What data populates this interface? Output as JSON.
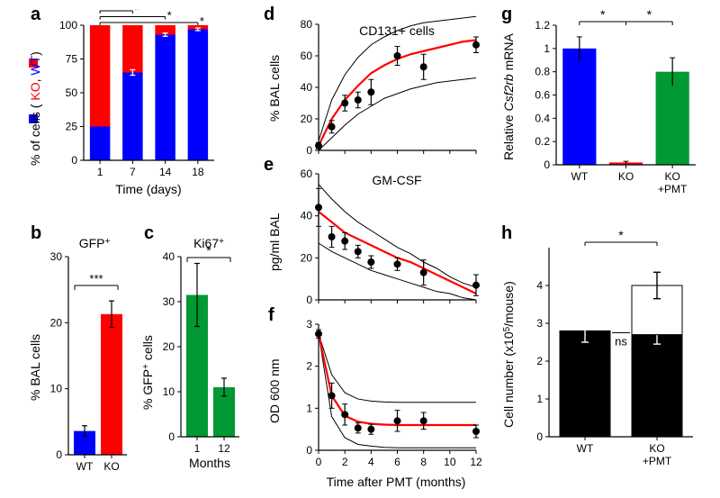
{
  "global": {
    "font_family": "Arial, Helvetica, sans-serif",
    "panel_label_fontsize": 20,
    "axis_label_fontsize": 14,
    "tick_fontsize": 12,
    "stroke_color": "#000000",
    "background_color": "#ffffff"
  },
  "panel_a": {
    "label": "a",
    "type": "stacked-bar",
    "x_categories": [
      "1",
      "7",
      "14",
      "18"
    ],
    "series": [
      {
        "name": "KO",
        "color": "#ff0000",
        "values": [
          75,
          35,
          7,
          3
        ],
        "errors": [
          0,
          2,
          1.2,
          1
        ]
      },
      {
        "name": "WT",
        "color": "#0000ff",
        "values": [
          25,
          65,
          93,
          97
        ],
        "errors": [
          0,
          2,
          1.2,
          1
        ]
      }
    ],
    "ylabel_top": "KO, ",
    "ylabel_bottom": "WT)",
    "ylabel_prefix": "% of cells ( ",
    "ylim": [
      0,
      100
    ],
    "yticks": [
      0,
      25,
      50,
      75,
      100
    ],
    "xlabel": "Time (days)",
    "bar_width": 0.62,
    "sig_marker": "*",
    "sig_pairs": [
      [
        0,
        1
      ],
      [
        0,
        2
      ],
      [
        0,
        3
      ]
    ]
  },
  "panel_b": {
    "label": "b",
    "type": "bar",
    "title": "GFP",
    "title_sup": "+",
    "x_categories": [
      "WT",
      "KO"
    ],
    "values": [
      3.6,
      21.3
    ],
    "errors": [
      0.8,
      2.0
    ],
    "colors": [
      "#0000ff",
      "#ff0000"
    ],
    "ylabel": "% BAL cells",
    "ylim": [
      0,
      30
    ],
    "yticks": [
      0,
      10,
      20,
      30
    ],
    "sig_label": "***",
    "bar_width": 0.8
  },
  "panel_c": {
    "label": "c",
    "type": "bar",
    "title": "Ki67",
    "title_sup": "+",
    "x_categories": [
      "1",
      "12"
    ],
    "values": [
      31.5,
      11.0
    ],
    "errors": [
      7.0,
      2.0
    ],
    "color": "#009933",
    "ylabel": "% GFP",
    "ylabel_sup": "+",
    "ylabel_suffix": " cells",
    "ylim": [
      0,
      40
    ],
    "yticks": [
      0,
      10,
      20,
      30,
      40
    ],
    "xlabel": "Months",
    "sig_label": "*",
    "bar_width": 0.8
  },
  "panel_d": {
    "label": "d",
    "type": "scatter-fit",
    "title": "CD131+ cells",
    "ylabel": "% BAL cells",
    "ylim": [
      0,
      80
    ],
    "yticks": [
      0,
      20,
      40,
      60,
      80
    ],
    "xlim": [
      0,
      12
    ],
    "xticks": [
      0,
      2,
      4,
      6,
      8,
      10,
      12
    ],
    "points": [
      {
        "x": 0,
        "y": 3,
        "ey": 2
      },
      {
        "x": 1,
        "y": 15,
        "ey": 4
      },
      {
        "x": 2,
        "y": 30,
        "ey": 5
      },
      {
        "x": 3,
        "y": 32,
        "ey": 5
      },
      {
        "x": 4,
        "y": 37,
        "ey": 8
      },
      {
        "x": 6,
        "y": 60,
        "ey": 6
      },
      {
        "x": 8,
        "y": 53,
        "ey": 8
      },
      {
        "x": 12,
        "y": 67,
        "ey": 5
      }
    ],
    "fit_color": "#ff0000",
    "band_color": "#000000",
    "marker_color": "#000000",
    "marker_size": 4,
    "fit_line_width": 2.2,
    "fit_y": [
      3,
      20,
      32,
      41,
      49,
      54,
      58,
      61,
      63,
      65,
      67,
      69,
      70
    ],
    "band_upper": [
      6,
      32,
      48,
      59,
      67,
      72,
      76,
      79,
      81,
      82,
      83,
      84,
      85
    ],
    "band_lower": [
      0,
      8,
      16,
      23,
      28,
      33,
      36,
      39,
      41,
      43,
      44,
      45,
      46
    ]
  },
  "panel_e": {
    "label": "e",
    "type": "scatter-fit",
    "title": "GM-CSF",
    "ylabel": "pg/ml BAL",
    "ylim": [
      0,
      60
    ],
    "yticks": [
      0,
      20,
      40,
      60
    ],
    "xlim": [
      0,
      12
    ],
    "xticks": [
      0,
      2,
      4,
      6,
      8,
      10,
      12
    ],
    "points": [
      {
        "x": 0,
        "y": 44,
        "ey": 9
      },
      {
        "x": 1,
        "y": 30,
        "ey": 5
      },
      {
        "x": 2,
        "y": 28,
        "ey": 4
      },
      {
        "x": 3,
        "y": 23,
        "ey": 3
      },
      {
        "x": 4,
        "y": 18,
        "ey": 3
      },
      {
        "x": 6,
        "y": 17,
        "ey": 3
      },
      {
        "x": 8,
        "y": 13,
        "ey": 6
      },
      {
        "x": 12,
        "y": 7,
        "ey": 5
      }
    ],
    "fit_color": "#ff0000",
    "band_color": "#000000",
    "marker_color": "#000000",
    "marker_size": 4,
    "fit_line_width": 2.2,
    "fit_y": [
      42,
      37,
      32,
      29,
      26,
      23,
      20,
      18,
      15,
      12,
      9,
      6,
      3
    ],
    "band_upper": [
      55,
      48,
      42,
      37,
      33,
      29,
      25,
      22,
      18,
      15,
      11,
      8,
      6
    ],
    "band_lower": [
      27,
      23,
      20,
      17,
      14,
      12,
      10,
      8,
      6,
      4,
      3,
      1,
      0
    ]
  },
  "panel_f": {
    "label": "f",
    "type": "scatter-fit",
    "ylabel": "OD 600 nm",
    "ylim": [
      0,
      3
    ],
    "yticks": [
      0,
      1,
      2,
      3
    ],
    "xlim": [
      0,
      12
    ],
    "xticks": [
      0,
      2,
      4,
      6,
      8,
      10,
      12
    ],
    "xlabel": "Time after PMT (months)",
    "points": [
      {
        "x": 0,
        "y": 2.77,
        "ey": 0.1
      },
      {
        "x": 1,
        "y": 1.3,
        "ey": 0.3
      },
      {
        "x": 2,
        "y": 0.85,
        "ey": 0.25
      },
      {
        "x": 3,
        "y": 0.53,
        "ey": 0.12
      },
      {
        "x": 4,
        "y": 0.5,
        "ey": 0.12
      },
      {
        "x": 6,
        "y": 0.7,
        "ey": 0.25
      },
      {
        "x": 8,
        "y": 0.7,
        "ey": 0.2
      },
      {
        "x": 12,
        "y": 0.45,
        "ey": 0.15
      }
    ],
    "fit_color": "#ff0000",
    "band_color": "#000000",
    "marker_color": "#000000",
    "marker_size": 4,
    "fit_line_width": 2.2,
    "fit_y": [
      2.77,
      1.3,
      0.82,
      0.68,
      0.63,
      0.61,
      0.6,
      0.6,
      0.6,
      0.6,
      0.6,
      0.6,
      0.6
    ],
    "band_upper": [
      2.77,
      1.8,
      1.37,
      1.22,
      1.17,
      1.15,
      1.14,
      1.14,
      1.14,
      1.14,
      1.14,
      1.14,
      1.14
    ],
    "band_lower": [
      2.77,
      0.8,
      0.3,
      0.14,
      0.1,
      0.07,
      0.06,
      0.06,
      0.06,
      0.06,
      0.06,
      0.06,
      0.06
    ]
  },
  "panel_g": {
    "label": "g",
    "type": "bar",
    "x_categories": [
      "WT",
      "KO",
      "KO\n+PMT"
    ],
    "values": [
      1.0,
      0.02,
      0.8
    ],
    "errors": [
      0.1,
      0.01,
      0.12
    ],
    "colors": [
      "#0000ff",
      "#ff0000",
      "#009933"
    ],
    "ylabel": "Relative ",
    "ylabel_italic": "Csf2rb",
    "ylabel_suffix": " mRNA",
    "ylim": [
      0,
      1.2
    ],
    "yticks": [
      0,
      0.2,
      0.4,
      0.6,
      0.8,
      1.0,
      1.2
    ],
    "sig_pairs": [
      {
        "from": 0,
        "to": 1,
        "label": "*"
      },
      {
        "from": 1,
        "to": 2,
        "label": "*"
      }
    ],
    "bar_width": 0.72
  },
  "panel_h": {
    "label": "h",
    "type": "stacked-bar",
    "x_categories": [
      "WT",
      "KO\n+PMT"
    ],
    "series": [
      {
        "name": "black",
        "color": "#000000",
        "values": [
          2.8,
          2.7
        ],
        "errors": [
          0.3,
          0.25
        ]
      },
      {
        "name": "white",
        "color": "#ffffff",
        "values": [
          0,
          1.3
        ],
        "errors": [
          0,
          0.35
        ]
      }
    ],
    "ylabel": "Cell number (x10",
    "ylabel_sup": "5",
    "ylabel_suffix": "/mouse)",
    "ylim": [
      0,
      5
    ],
    "yticks": [
      0,
      1,
      2,
      3,
      4
    ],
    "ns_label": "ns",
    "top_sig_label": "*",
    "bar_width": 0.7
  }
}
